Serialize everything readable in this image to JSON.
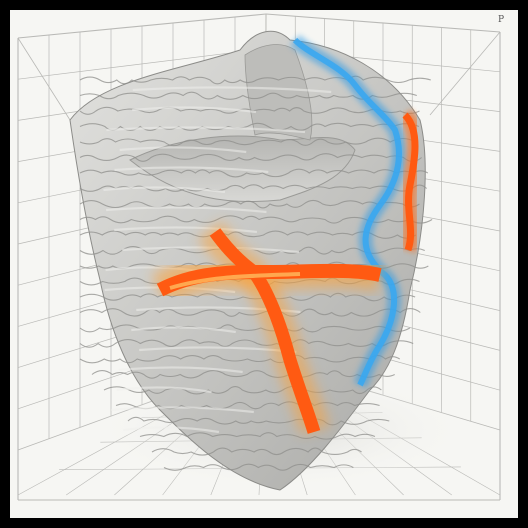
{
  "artwork": {
    "subject": "3d-grid-box-with-organic-gray-sculpture",
    "corner_label": "P",
    "colors": {
      "frame": "#000000",
      "paper": "#f6f6f3",
      "grid_line": "#b9b9b6",
      "sculpture_base": "#c9c9c6",
      "sculpture_shadow": "#8c8c89",
      "sculpture_highlight": "#efefec",
      "orange_vein": "#ff5a12",
      "orange_glow": "#ffa033",
      "blue_vein": "#2f9be6"
    }
  }
}
